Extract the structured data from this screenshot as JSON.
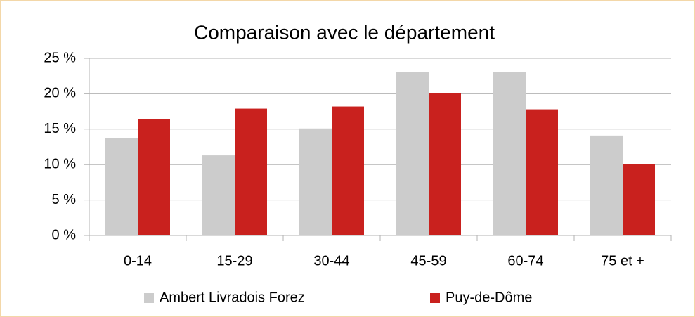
{
  "chart_data": {
    "type": "bar",
    "title": "Comparaison avec le département",
    "categories": [
      "0-14",
      "15-29",
      "30-44",
      "45-59",
      "60-74",
      "75 et +"
    ],
    "series": [
      {
        "name": "Ambert Livradois Forez",
        "color": "#cccccc",
        "values": [
          13.7,
          11.3,
          15.1,
          23.1,
          23.1,
          14.1
        ]
      },
      {
        "name": "Puy-de-Dôme",
        "color": "#c9211e",
        "values": [
          16.4,
          17.9,
          18.2,
          20.1,
          17.8,
          10.1
        ]
      }
    ],
    "ylim": [
      0,
      25
    ],
    "yticks": [
      {
        "value": 0,
        "label": "0 %"
      },
      {
        "value": 5,
        "label": "5 %"
      },
      {
        "value": 10,
        "label": "10 %"
      },
      {
        "value": 15,
        "label": "15 %"
      },
      {
        "value": 20,
        "label": "20 %"
      },
      {
        "value": 25,
        "label": "25 %"
      }
    ],
    "grid": true,
    "legend": "bottom"
  }
}
